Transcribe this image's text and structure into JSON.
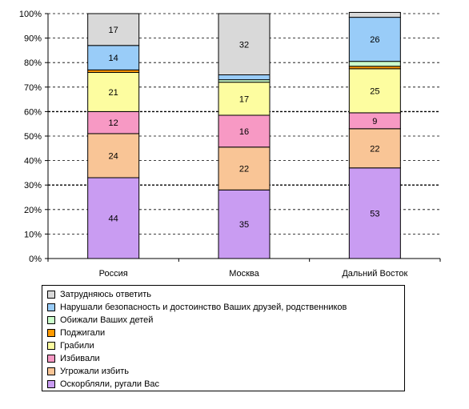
{
  "chart_data": {
    "type": "stacked-bar-percent",
    "categories": [
      "Россия",
      "Москва",
      "Дальний Восток"
    ],
    "series": [
      {
        "name": "Оскорбляли, ругали Вас",
        "color": "#c99cf2",
        "values": [
          33,
          28,
          37
        ],
        "labels": [
          "44",
          "35",
          "53"
        ]
      },
      {
        "name": "Угрожали избить",
        "color": "#f9c596",
        "values": [
          18,
          17.5,
          16
        ],
        "labels": [
          "24",
          "22",
          "22"
        ]
      },
      {
        "name": "Избивали",
        "color": "#f799c4",
        "values": [
          9,
          13,
          6.5
        ],
        "labels": [
          "12",
          "16",
          "9"
        ]
      },
      {
        "name": "Грабили",
        "color": "#fdfda0",
        "values": [
          16,
          13.5,
          18
        ],
        "labels": [
          "21",
          "17",
          "25"
        ]
      },
      {
        "name": "Поджигали",
        "color": "#ff9a00",
        "values": [
          1,
          0,
          1
        ],
        "labels": [
          "",
          "",
          ""
        ]
      },
      {
        "name": "Обижали Ваших детей",
        "color": "#ccffcc",
        "values": [
          0,
          1,
          2
        ],
        "labels": [
          "",
          "",
          ""
        ]
      },
      {
        "name": "Нарушали безопасность и достоинство Ваших друзей, родственников",
        "color": "#99ccf8",
        "values": [
          10,
          2,
          18
        ],
        "labels": [
          "14",
          "",
          "26"
        ]
      },
      {
        "name": "Затрудняюсь ответить",
        "color": "#d9d9d9",
        "values": [
          13,
          25,
          2
        ],
        "labels": [
          "17",
          "32",
          ""
        ]
      }
    ],
    "ylim": [
      0,
      100
    ],
    "yticks": [
      "0%",
      "10%",
      "20%",
      "30%",
      "40%",
      "50%",
      "60%",
      "70%",
      "80%",
      "90%",
      "100%"
    ],
    "grid": "dashed",
    "legend_position": "bottom",
    "title": "",
    "xlabel": "",
    "ylabel": ""
  },
  "legend_order": [
    7,
    6,
    5,
    4,
    3,
    2,
    1,
    0
  ]
}
